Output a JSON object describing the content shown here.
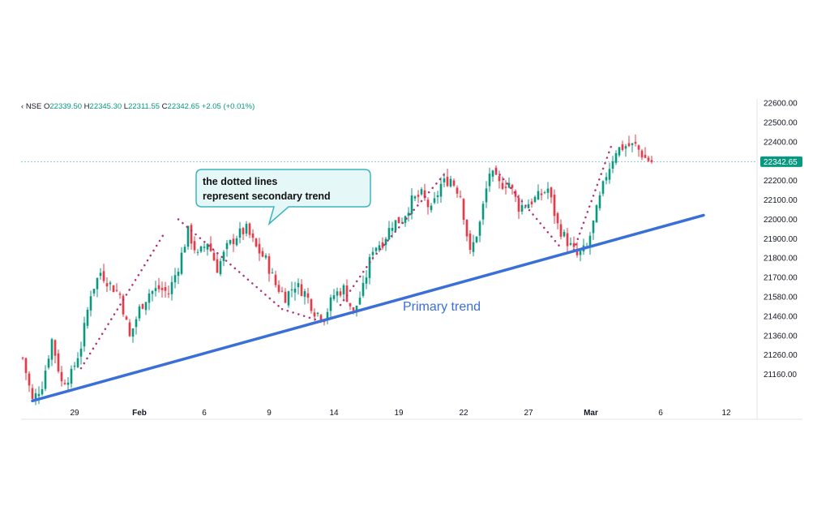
{
  "legend": {
    "symbol": "NSE",
    "open_key": "O",
    "open": "22339.50",
    "high_key": "H",
    "high": "22345.30",
    "low_key": "L",
    "low": "22311.55",
    "close_key": "C",
    "close": "22342.65",
    "change": "+2.05 (+0.01%)"
  },
  "colors": {
    "up": "#089981",
    "down": "#f23645",
    "primary_trend": "#3a6fd8",
    "secondary_trend": "#b0347a",
    "callout_fill": "#e6f7f7",
    "callout_border": "#39b6bf",
    "price_tag": "#089981"
  },
  "annotations": {
    "callout_line1": "the dotted lines",
    "callout_line2": "represent secondary trend",
    "primary_label": "Primary trend"
  },
  "chart_data": {
    "type": "candlestick",
    "y_ticks": [
      "22600.00",
      "22500.00",
      "22400.00",
      "22300.00",
      "22200.00",
      "22100.00",
      "22000.00",
      "21900.00",
      "21800.00",
      "21700.00",
      "21580.00",
      "21460.00",
      "21360.00",
      "21260.00",
      "21160.00"
    ],
    "ylim": [
      21080,
      22650
    ],
    "x_ticks": [
      {
        "label": "29",
        "bold": false
      },
      {
        "label": "Feb",
        "bold": true
      },
      {
        "label": "6",
        "bold": false
      },
      {
        "label": "9",
        "bold": false
      },
      {
        "label": "14",
        "bold": false
      },
      {
        "label": "19",
        "bold": false
      },
      {
        "label": "22",
        "bold": false
      },
      {
        "label": "27",
        "bold": false
      },
      {
        "label": "Mar",
        "bold": true
      },
      {
        "label": "6",
        "bold": false
      },
      {
        "label": "12",
        "bold": false
      }
    ],
    "last_price": "22342.65",
    "last_price_value": 22342.65,
    "price_path": [
      [
        0,
        21380
      ],
      [
        3,
        21170
      ],
      [
        6,
        21250
      ],
      [
        9,
        21470
      ],
      [
        12,
        21260
      ],
      [
        15,
        21300
      ],
      [
        18,
        21440
      ],
      [
        21,
        21700
      ],
      [
        24,
        21800
      ],
      [
        27,
        21740
      ],
      [
        30,
        21690
      ],
      [
        33,
        21480
      ],
      [
        36,
        21620
      ],
      [
        39,
        21700
      ],
      [
        42,
        21720
      ],
      [
        45,
        21700
      ],
      [
        48,
        21830
      ],
      [
        51,
        22000
      ],
      [
        54,
        21880
      ],
      [
        57,
        21950
      ],
      [
        60,
        21820
      ],
      [
        63,
        21920
      ],
      [
        66,
        21980
      ],
      [
        69,
        22010
      ],
      [
        72,
        21920
      ],
      [
        75,
        21860
      ],
      [
        78,
        21740
      ],
      [
        81,
        21680
      ],
      [
        84,
        21740
      ],
      [
        87,
        21700
      ],
      [
        90,
        21610
      ],
      [
        93,
        21580
      ],
      [
        96,
        21690
      ],
      [
        99,
        21720
      ],
      [
        102,
        21600
      ],
      [
        105,
        21720
      ],
      [
        108,
        21920
      ],
      [
        111,
        21950
      ],
      [
        114,
        22040
      ],
      [
        117,
        22060
      ],
      [
        120,
        22150
      ],
      [
        123,
        22180
      ],
      [
        126,
        22100
      ],
      [
        129,
        22230
      ],
      [
        132,
        22260
      ],
      [
        135,
        22180
      ],
      [
        138,
        21890
      ],
      [
        141,
        22040
      ],
      [
        144,
        22290
      ],
      [
        147,
        22230
      ],
      [
        150,
        22240
      ],
      [
        153,
        22120
      ],
      [
        156,
        22140
      ],
      [
        159,
        22170
      ],
      [
        162,
        22210
      ],
      [
        165,
        22030
      ],
      [
        168,
        21950
      ],
      [
        171,
        21880
      ],
      [
        174,
        21920
      ],
      [
        177,
        22100
      ],
      [
        180,
        22280
      ],
      [
        183,
        22400
      ],
      [
        186,
        22420
      ],
      [
        189,
        22420
      ],
      [
        192,
        22360
      ],
      [
        194,
        22342
      ]
    ],
    "secondary_trend_segments": [
      [
        [
          18,
          21330
        ],
        [
          44,
          22000
        ]
      ],
      [
        [
          48,
          22060
        ],
        [
          80,
          21620
        ]
      ],
      [
        [
          80,
          21620
        ],
        [
          92,
          21560
        ]
      ],
      [
        [
          98,
          21640
        ],
        [
          108,
          21870
        ]
      ],
      [
        [
          108,
          21870
        ],
        [
          130,
          22280
        ]
      ],
      [
        [
          146,
          22300
        ],
        [
          166,
          21920
        ]
      ],
      [
        [
          170,
          21910
        ],
        [
          182,
          22440
        ]
      ]
    ],
    "primary_trend": [
      [
        3,
        21170
      ],
      [
        210,
        22080
      ]
    ]
  }
}
